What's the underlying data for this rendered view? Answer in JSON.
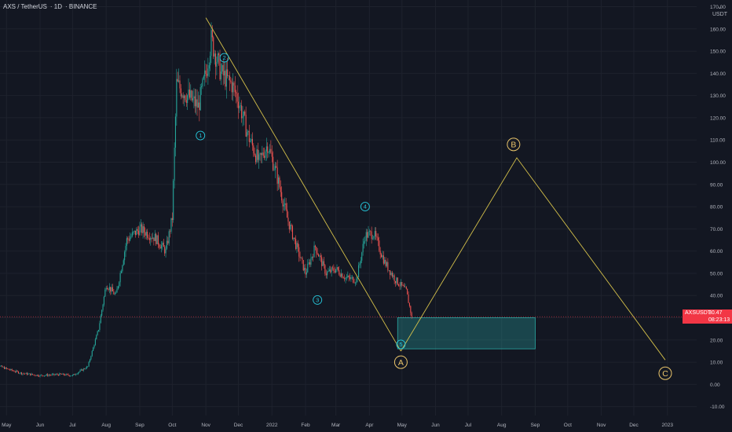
{
  "header": {
    "symbol": "AXS / TetherUS",
    "interval": "1D",
    "exchange": "BINANCE"
  },
  "currency": {
    "label": "USDT"
  },
  "price_tag": {
    "symbol": "AXSUSDT",
    "price": "30.47",
    "countdown": "08:23:13"
  },
  "colors": {
    "background": "#131722",
    "grid": "#1e222d",
    "up": "#26a69a",
    "down": "#ef5350",
    "wave_line": "#d4c04a",
    "wave_label": "#26c6da",
    "abc_label": "#e9c46a",
    "zone_fill": "#2aa9a4",
    "price_line": "#f23645"
  },
  "chart_data": {
    "type": "candlestick",
    "ylim": [
      -14,
      173
    ],
    "y_ticks": [
      "-10.00",
      "0.00",
      "10.00",
      "20.00",
      "30.00",
      "40.00",
      "50.00",
      "60.00",
      "70.00",
      "80.00",
      "90.00",
      "100.00",
      "110.00",
      "120.00",
      "130.00",
      "140.00",
      "150.00",
      "160.00",
      "170.00"
    ],
    "x_ticks": [
      "May",
      "Jun",
      "Jul",
      "Aug",
      "Sep",
      "Oct",
      "Nov",
      "Dec",
      "2022",
      "Feb",
      "Mar",
      "Apr",
      "May",
      "Jun",
      "Jul",
      "Aug",
      "Sep",
      "Oct",
      "Nov",
      "Dec",
      "2023"
    ],
    "x_tick_dates": [
      "2021-05-01",
      "2021-06-01",
      "2021-07-01",
      "2021-08-01",
      "2021-09-01",
      "2021-10-01",
      "2021-11-01",
      "2021-12-01",
      "2022-01-01",
      "2022-02-01",
      "2022-03-01",
      "2022-04-01",
      "2022-05-01",
      "2022-06-01",
      "2022-07-01",
      "2022-08-01",
      "2022-09-01",
      "2022-10-01",
      "2022-11-01",
      "2022-12-01",
      "2023-01-01"
    ],
    "last_price": 30.47,
    "price_path": [
      [
        "2021-04-15",
        10
      ],
      [
        "2021-05-01",
        7
      ],
      [
        "2021-05-15",
        5
      ],
      [
        "2021-06-01",
        4
      ],
      [
        "2021-06-20",
        4.5
      ],
      [
        "2021-07-01",
        4
      ],
      [
        "2021-07-15",
        8
      ],
      [
        "2021-07-25",
        25
      ],
      [
        "2021-08-01",
        45
      ],
      [
        "2021-08-10",
        40
      ],
      [
        "2021-08-20",
        65
      ],
      [
        "2021-09-01",
        70
      ],
      [
        "2021-09-15",
        66
      ],
      [
        "2021-09-25",
        60
      ],
      [
        "2021-10-01",
        75
      ],
      [
        "2021-10-05",
        135
      ],
      [
        "2021-10-15",
        130
      ],
      [
        "2021-10-25",
        125
      ],
      [
        "2021-11-01",
        140
      ],
      [
        "2021-11-06",
        155
      ],
      [
        "2021-11-15",
        140
      ],
      [
        "2021-11-25",
        135
      ],
      [
        "2021-12-01",
        128
      ],
      [
        "2021-12-10",
        112
      ],
      [
        "2021-12-20",
        100
      ],
      [
        "2021-12-28",
        108
      ],
      [
        "2022-01-05",
        95
      ],
      [
        "2022-01-15",
        75
      ],
      [
        "2022-01-25",
        60
      ],
      [
        "2022-02-01",
        50
      ],
      [
        "2022-02-10",
        62
      ],
      [
        "2022-02-20",
        50
      ],
      [
        "2022-03-01",
        52
      ],
      [
        "2022-03-10",
        48
      ],
      [
        "2022-03-20",
        47
      ],
      [
        "2022-03-28",
        67
      ],
      [
        "2022-04-05",
        68
      ],
      [
        "2022-04-15",
        55
      ],
      [
        "2022-04-25",
        47
      ],
      [
        "2022-05-05",
        42
      ],
      [
        "2022-05-10",
        30.47
      ]
    ],
    "wave_labels": [
      {
        "text": "1",
        "x": "2021-10-27",
        "y": 112
      },
      {
        "text": "2",
        "x": "2021-11-18",
        "y": 147
      },
      {
        "text": "3",
        "x": "2022-02-12",
        "y": 38
      },
      {
        "text": "4",
        "x": "2022-03-28",
        "y": 80
      },
      {
        "text": "5",
        "x": "2022-04-30",
        "y": 18
      }
    ],
    "abc_labels": [
      {
        "text": "A",
        "x": "2022-04-30",
        "y": 10
      },
      {
        "text": "B",
        "x": "2022-08-12",
        "y": 108
      },
      {
        "text": "C",
        "x": "2022-12-30",
        "y": 5
      }
    ],
    "trendlines": [
      [
        [
          "2021-11-01",
          165
        ],
        [
          "2022-04-30",
          15
        ]
      ],
      [
        [
          "2022-04-30",
          15
        ],
        [
          "2022-08-15",
          102
        ],
        [
          "2022-12-30",
          11
        ]
      ]
    ],
    "zone": {
      "x0": "2022-04-27",
      "x1": "2022-09-01",
      "y0": 16,
      "y1": 30
    }
  }
}
